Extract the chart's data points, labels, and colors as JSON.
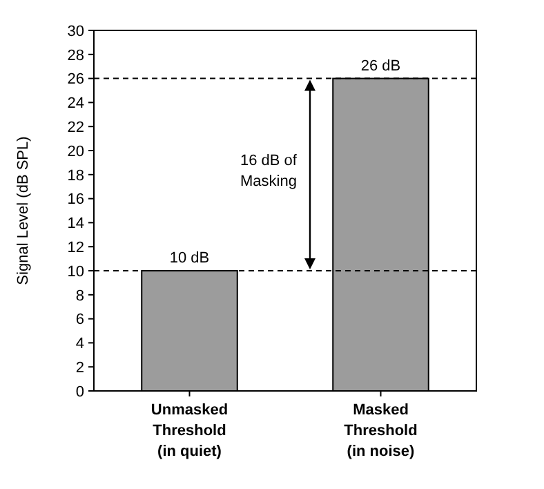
{
  "chart_data": {
    "type": "bar",
    "ylabel": "Signal Level (dB SPL)",
    "categories": [
      "Unmasked\nThreshold\n(in quiet)",
      "Masked\nThreshold\n(in noise)"
    ],
    "values": [
      10,
      26
    ],
    "color": "#9c9c9c",
    "value_labels": [
      "10 dB",
      "26 dB"
    ],
    "ylim": [
      0,
      30
    ],
    "yticks": [
      0,
      2,
      4,
      6,
      8,
      10,
      12,
      14,
      16,
      18,
      20,
      22,
      24,
      26,
      28,
      30
    ],
    "ref_lines": [
      {
        "axis": "y",
        "value": 10,
        "line_style": "dashed",
        "color": "#000000"
      },
      {
        "axis": "y",
        "value": 26,
        "line_style": "dashed",
        "color": "#000000"
      }
    ],
    "annotations": [
      "16 dB of\nMasking"
    ],
    "grid": false
  }
}
